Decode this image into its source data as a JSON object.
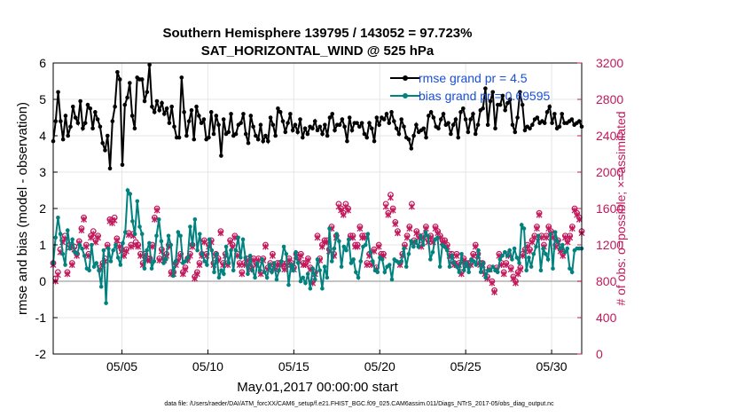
{
  "chart_data": {
    "type": "line",
    "title": "Southern Hemisphere 139795 / 143052 = 97.723%",
    "subtitle": "SAT_HORIZONTAL_WIND @ 525 hPa",
    "xlabel": "May.01,2017 00:00:00 start",
    "ylabel": "rmse and bias (model - observation)",
    "y2label": "# of obs: o=possible; ×=assimilated",
    "footnote": "data file: /Users/raeder/DAI/ATM_forcXX/CAM6_setup/f.e21.FHIST_BGC.f09_025.CAM6assim.011/Diags_NTrS_2017-05/obs_diag_output.nc",
    "xlim": [
      1,
      31.75
    ],
    "ylim": [
      -2,
      6
    ],
    "y2lim": [
      0,
      3200
    ],
    "x_ticks": [
      5,
      10,
      15,
      20,
      25,
      30
    ],
    "x_tick_labels": [
      "05/05",
      "05/10",
      "05/15",
      "05/20",
      "05/25",
      "05/30"
    ],
    "y_ticks": [
      -2,
      -1,
      0,
      1,
      2,
      3,
      4,
      5,
      6
    ],
    "y2_ticks": [
      0,
      400,
      800,
      1200,
      1600,
      2000,
      2400,
      2800,
      3200
    ],
    "grid": true,
    "zero_line": 0,
    "legend_position": "top-right",
    "colors": {
      "rmse": "#000000",
      "bias": "#00827f",
      "obs": "#c2185b",
      "legend_text": "#1a4fd6",
      "zero": "#b0b0b0"
    },
    "series": [
      {
        "name": "rmse grand pr = 4.5",
        "axis": "left",
        "values": [
          3.85,
          4.4,
          5.2,
          4.4,
          3.9,
          4.55,
          4.0,
          4.25,
          4.8,
          4.5,
          4.35,
          4.95,
          4.2,
          4.35,
          4.85,
          4.75,
          4.2,
          4.65,
          4.45,
          4.25,
          3.8,
          3.6,
          4.0,
          3.1,
          4.4,
          4.8,
          5.75,
          5.55,
          3.2,
          4.85,
          5.05,
          5.45,
          4.55,
          4.2,
          5.6,
          5.55,
          5.55,
          4.95,
          5.2,
          5.95,
          4.8,
          4.65,
          4.95,
          4.7,
          4.9,
          4.6,
          4.75,
          4.35,
          4.8,
          4.25,
          3.95,
          3.95,
          5.6,
          4.65,
          4.0,
          4.4,
          4.7,
          3.9,
          4.8,
          4.55,
          4.35,
          4.45,
          3.9,
          3.95,
          4.65,
          4.05,
          4.55,
          4.3,
          3.45,
          4.45,
          4.05,
          4.1,
          4.6,
          4.0,
          4.05,
          4.3,
          4.35,
          4.6,
          4.05,
          3.8,
          4.55,
          4.25,
          4.0,
          3.9,
          4.3,
          3.85,
          4.0,
          3.85,
          4.5,
          4.3,
          4.0,
          4.75,
          4.65,
          4.4,
          4.1,
          4.35,
          4.6,
          4.15,
          4.3,
          4.1,
          4.45,
          3.95,
          4.2,
          4.05,
          4.25,
          4.2,
          4.4,
          4.15,
          4.25,
          4.05,
          4.3,
          4.0,
          4.5,
          4.6,
          4.15,
          4.3,
          4.3,
          4.45,
          4.25,
          3.85,
          4.5,
          4.15,
          4.35,
          4.35,
          4.25,
          4.35,
          4.05,
          3.95,
          4.35,
          4.2,
          3.85,
          4.5,
          4.3,
          4.5,
          4.45,
          4.6,
          4.35,
          4.65,
          4.4,
          4.2,
          4.05,
          4.45,
          4.25,
          3.95,
          3.9,
          3.65,
          4.0,
          4.3,
          4.1,
          4.15,
          4.2,
          3.95,
          4.55,
          4.65,
          4.5,
          4.25,
          4.2,
          4.45,
          4.6,
          4.3,
          4.35,
          4.05,
          4.3,
          4.45,
          3.95,
          4.65,
          4.75,
          4.45,
          4.1,
          4.45,
          4.6,
          4.05,
          4.3,
          4.7,
          4.75,
          5.3,
          4.3,
          4.95,
          5.2,
          4.2,
          4.85,
          4.85,
          5.1,
          4.7,
          4.9,
          5.0,
          4.3,
          4.1,
          4.5,
          5.2,
          4.85,
          4.15,
          4.25,
          4.2,
          4.3,
          4.45,
          4.5,
          4.35,
          4.4,
          4.35,
          4.65,
          4.8,
          4.35,
          4.6,
          4.2,
          4.25,
          4.6,
          4.35,
          4.35,
          4.4,
          4.45,
          4.3,
          4.35,
          4.4,
          4.25
        ]
      },
      {
        "name": "bias grand pr = 0.69595",
        "axis": "left",
        "values": [
          0.5,
          1.2,
          1.75,
          1.3,
          0.75,
          0.45,
          1.4,
          0.9,
          1.15,
          0.8,
          0.75,
          1.0,
          0.9,
          0.7,
          0.35,
          0.3,
          1.0,
          0.4,
          0.5,
          0.3,
          -0.15,
          0.85,
          -0.6,
          0.9,
          0.55,
          0.85,
          1.0,
          0.65,
          0.45,
          1.05,
          1.35,
          2.5,
          2.4,
          1.65,
          1.3,
          2.2,
          1.5,
          1.3,
          0.35,
          0.85,
          1.05,
          0.35,
          0.55,
          1.25,
          1.7,
          1.1,
          0.5,
          0.6,
          1.25,
          1.0,
          0.15,
          0.55,
          1.35,
          1.25,
          0.5,
          0.55,
          0.65,
          1.5,
          1.0,
          1.7,
          0.85,
          1.3,
          0.75,
          0.55,
          0.45,
          1.15,
          0.85,
          0.25,
          0.75,
          0.1,
          0.3,
          0.2,
          0.95,
          0.5,
          0.85,
          0.3,
          0.85,
          1.2,
          0.65,
          1.15,
          0.65,
          0.2,
          0.7,
          0.3,
          0.1,
          0.5,
          0.3,
          0.6,
          0.25,
          0.1,
          0.45,
          0.25,
          0.5,
          0.05,
          0.3,
          0.55,
          0.95,
          0.75,
          -0.1,
          0.45,
          0.3,
          0.8,
          0.5,
          0.0,
          0.1,
          -0.05,
          0.2,
          -0.2,
          0.35,
          0.05,
          0.6,
          0.3,
          -0.2,
          0.4,
          0.1,
          1.45,
          0.55,
          0.9,
          1.3,
          1.1,
          0.4,
          0.95,
          0.85,
          1.15,
          0.5,
          0.6,
          0.25,
          0.1,
          0.55,
          0.95,
          1.0,
          1.3,
          0.8,
          0.55,
          0.3,
          0.25,
          0.65,
          0.6,
          0.25,
          0.4,
          0.45,
          0.05,
          0.6,
          0.55,
          0.5,
          0.55,
          0.9,
          0.4,
          0.75,
          1.1,
          0.95,
          1.1,
          0.95,
          1.25,
          1.0,
          1.35,
          1.25,
          0.6,
          0.8,
          1.15,
          1.2,
          0.4,
          1.0,
          0.95,
          0.85,
          0.4,
          0.7,
          0.5,
          0.4,
          0.25,
          0.75,
          0.3,
          0.5,
          0.25,
          0.6,
          0.55,
          0.45,
          0.85,
          0.25,
          0.5,
          0.1,
          0.3,
          0.3,
          0.4,
          0.3,
          0.25,
          0.6,
          0.7,
          0.8,
          0.7,
          0.85,
          0.6,
          0.9,
          0.65,
          0.5,
          1.55,
          1.45,
          0.3,
          0.65,
          0.4,
          0.75,
          0.95,
          1.25,
          0.3,
          0.9,
          0.75,
          0.6,
          1.3,
          0.35,
          1.35,
          1.1,
          0.9,
          1.0,
          0.8,
          0.9,
          0.35,
          0.25,
          0.85,
          0.9,
          0.9,
          0.9
        ]
      },
      {
        "name": "obs possible",
        "axis": "right",
        "marker": "o",
        "values": [
          1000,
          830,
          900,
          1150,
          1250,
          1300,
          900,
          1200,
          1000,
          1180,
          1100,
          1240,
          1380,
          1500,
          1200,
          1100,
          1300,
          1350,
          1250,
          1300,
          950,
          1000,
          1050,
          1200,
          1480,
          1470,
          1500,
          1270,
          1200,
          1150,
          1100,
          1150,
          1330,
          1200,
          1320,
          1230,
          1200,
          1100,
          1000,
          1100,
          1050,
          1050,
          1200,
          1500,
          1600,
          1050,
          1150,
          1050,
          1100,
          1200,
          900,
          900,
          1000,
          1050,
          1100,
          900,
          950,
          1050,
          1100,
          1200,
          850,
          900,
          1000,
          1100,
          1250,
          1100,
          1200,
          1250,
          1000,
          1100,
          1050,
          1350,
          1000,
          1100,
          1000,
          1250,
          1200,
          1300,
          1100,
          1000,
          900,
          1000,
          1050,
          1000,
          950,
          1050,
          1000,
          1050,
          900,
          1050,
          1200,
          950,
          1000,
          1100,
          950,
          1000,
          1000,
          1000,
          950,
          1000,
          1050,
          1000,
          950,
          1100,
          1050,
          1100,
          1000,
          1000,
          1050,
          950,
          800,
          900,
          1300,
          1050,
          1200,
          1250,
          1250,
          1150,
          1400,
          1100,
          1300,
          1650,
          1600,
          1550,
          1650,
          1600,
          1300,
          1300,
          1200,
          1200,
          1400,
          1300,
          1300,
          1000,
          1100,
          1000,
          1150,
          950,
          1200,
          1100,
          1100,
          1650,
          1550,
          1750,
          1600,
          1450,
          1350,
          1000,
          1100,
          1200,
          1300,
          1400,
          1650,
          1250,
          1350,
          1300,
          1200,
          1300,
          1400,
          1250,
          1300,
          1250,
          1400,
          1350,
          1300,
          1250,
          1250,
          1200,
          1100,
          1100,
          1000,
          1100,
          1000,
          900,
          1050,
          1000,
          1000,
          1000,
          1100,
          1200,
          1100,
          1000,
          1000,
          900,
          850,
          950,
          800,
          700,
          950,
          1100,
          1000,
          900,
          1000,
          1100,
          950,
          850,
          800,
          900,
          950,
          1100,
          1150,
          1200,
          1150,
          1250,
          1300,
          1400,
          1550,
          1300,
          1200,
          1300,
          1400,
          1350,
          1300,
          1200,
          1250,
          1150,
          1100,
          1300,
          1250,
          1300,
          1400,
          1600,
          1550,
          1500,
          1350
        ]
      },
      {
        "name": "obs assimilated",
        "axis": "right",
        "marker": "x",
        "values": [
          980,
          800,
          870,
          1120,
          1230,
          1270,
          880,
          1170,
          980,
          1150,
          1080,
          1220,
          1360,
          1480,
          1180,
          1080,
          1280,
          1320,
          1230,
          1280,
          930,
          980,
          1020,
          1180,
          1460,
          1440,
          1470,
          1250,
          1180,
          1130,
          1080,
          1130,
          1310,
          1180,
          1300,
          1200,
          1180,
          1080,
          980,
          1080,
          1030,
          1030,
          1180,
          1480,
          1580,
          1030,
          1130,
          1030,
          1080,
          1180,
          880,
          880,
          980,
          1030,
          1080,
          880,
          930,
          1030,
          1080,
          1180,
          830,
          880,
          980,
          1080,
          1230,
          1080,
          1180,
          1230,
          980,
          1080,
          1030,
          1330,
          980,
          1080,
          980,
          1230,
          1180,
          1280,
          1080,
          980,
          880,
          980,
          1030,
          980,
          930,
          1030,
          980,
          1030,
          880,
          1030,
          1180,
          930,
          980,
          1080,
          930,
          980,
          980,
          980,
          930,
          980,
          1030,
          980,
          930,
          1080,
          1030,
          1080,
          980,
          980,
          1030,
          930,
          780,
          880,
          1280,
          1030,
          1180,
          1230,
          1230,
          1130,
          1380,
          1080,
          1280,
          1620,
          1580,
          1530,
          1620,
          1580,
          1280,
          1280,
          1180,
          1180,
          1380,
          1280,
          1280,
          980,
          1080,
          980,
          1130,
          930,
          1180,
          1080,
          1080,
          1620,
          1530,
          1720,
          1580,
          1430,
          1330,
          980,
          1080,
          1180,
          1280,
          1380,
          1620,
          1230,
          1330,
          1280,
          1180,
          1280,
          1380,
          1230,
          1280,
          1230,
          1380,
          1330,
          1280,
          1230,
          1230,
          1180,
          1080,
          1080,
          980,
          1080,
          980,
          880,
          1030,
          980,
          980,
          980,
          1080,
          1180,
          1080,
          980,
          980,
          880,
          830,
          930,
          780,
          680,
          930,
          1080,
          980,
          880,
          980,
          1080,
          930,
          830,
          780,
          880,
          930,
          1080,
          1130,
          1180,
          1130,
          1230,
          1280,
          1380,
          1530,
          1280,
          1180,
          1280,
          1380,
          1330,
          1280,
          1180,
          1230,
          1130,
          1080,
          1280,
          1230,
          1280,
          1380,
          1580,
          1530,
          1480,
          1330
        ]
      }
    ]
  }
}
